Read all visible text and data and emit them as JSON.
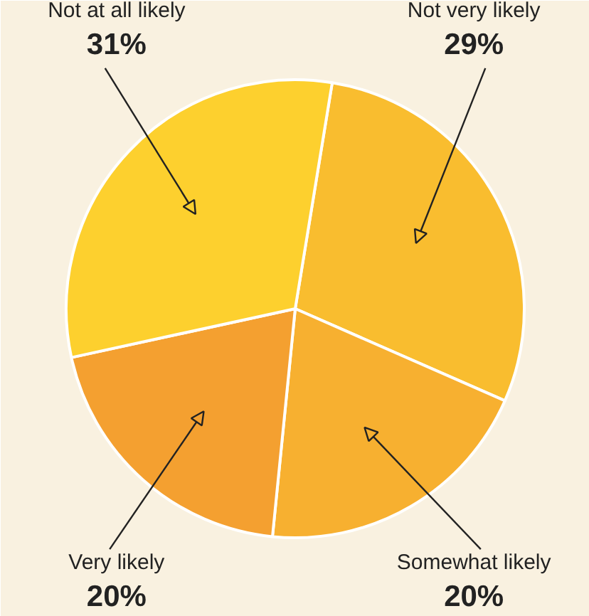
{
  "chart_data": {
    "type": "pie",
    "categories": [
      "Not very likely",
      "Somewhat likely",
      "Very likely",
      "Not at all likely"
    ],
    "values": [
      29,
      20,
      20,
      31
    ],
    "value_labels": [
      "29%",
      "20%",
      "20%",
      "31%"
    ],
    "colors": [
      "#f9bd2f",
      "#f7b030",
      "#f4a030",
      "#fdd02e"
    ]
  }
}
